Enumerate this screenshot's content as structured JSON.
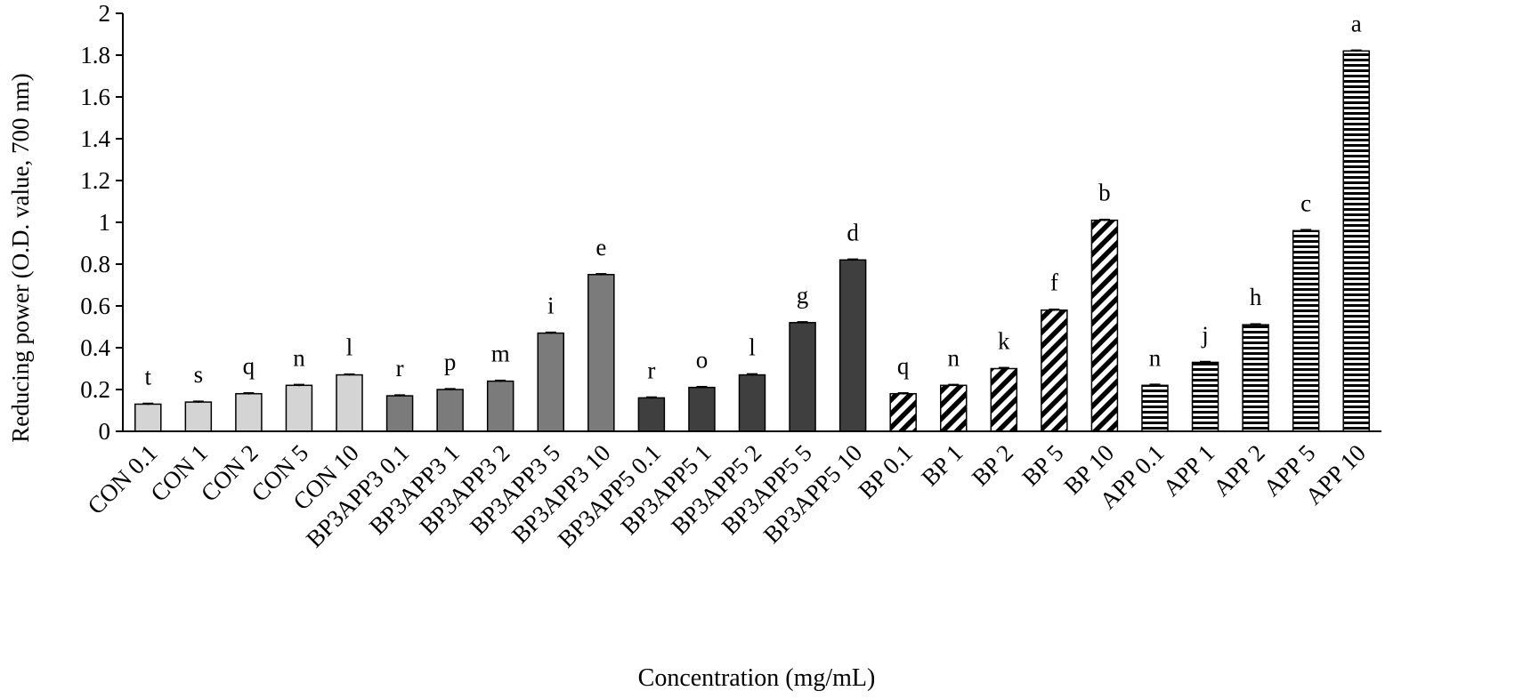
{
  "chart_data": {
    "type": "bar",
    "title": "",
    "xlabel": "Concentration (mg/mL)",
    "ylabel": "Reducing power (O.D. value, 700 nm)",
    "ylim": [
      0,
      2
    ],
    "ytick_step": 0.2,
    "yticks": [
      "0",
      "0.2",
      "0.4",
      "0.6",
      "0.8",
      "1",
      "1.2",
      "1.4",
      "1.6",
      "1.8",
      "2"
    ],
    "grid": false,
    "legend": "none",
    "categories": [
      "CON 0.1",
      "CON 1",
      "CON 2",
      "CON 5",
      "CON 10",
      "BP3APP3 0.1",
      "BP3APP3 1",
      "BP3APP3 2",
      "BP3APP3 5",
      "BP3APP3 10",
      "BP3APP5 0.1",
      "BP3APP5 1",
      "BP3APP5 2",
      "BP3APP5 5",
      "BP3APP5 10",
      "BP 0.1",
      "BP 1",
      "BP 2",
      "BP 5",
      "BP 10",
      "APP 0.1",
      "APP 1",
      "APP 2",
      "APP 5",
      "APP 10"
    ],
    "values": [
      0.13,
      0.14,
      0.18,
      0.22,
      0.27,
      0.17,
      0.2,
      0.24,
      0.47,
      0.75,
      0.16,
      0.21,
      0.27,
      0.52,
      0.82,
      0.18,
      0.22,
      0.3,
      0.58,
      1.01,
      0.22,
      0.33,
      0.51,
      0.96,
      1.82
    ],
    "errors": [
      0.004,
      0.004,
      0.004,
      0.004,
      0.004,
      0.004,
      0.004,
      0.004,
      0.004,
      0.004,
      0.004,
      0.004,
      0.005,
      0.004,
      0.004,
      0.004,
      0.004,
      0.005,
      0.004,
      0.004,
      0.005,
      0.004,
      0.004,
      0.005,
      0.004
    ],
    "significance_letters": [
      "t",
      "s",
      "q",
      "n",
      "l",
      "r",
      "p",
      "m",
      "i",
      "e",
      "r",
      "o",
      "l",
      "g",
      "d",
      "q",
      "n",
      "k",
      "f",
      "b",
      "n",
      "j",
      "h",
      "c",
      "a"
    ],
    "groups": [
      {
        "name": "CON",
        "fill": "light-gray",
        "color": "#d4d4d4"
      },
      {
        "name": "BP3APP3",
        "fill": "medium-gray",
        "color": "#7b7b7b"
      },
      {
        "name": "BP3APP5",
        "fill": "dark-gray",
        "color": "#3f3f3f"
      },
      {
        "name": "BP",
        "fill": "diagonal-stripes",
        "color": "#000000"
      },
      {
        "name": "APP",
        "fill": "horizontal-stripes",
        "color": "#000000"
      }
    ]
  }
}
